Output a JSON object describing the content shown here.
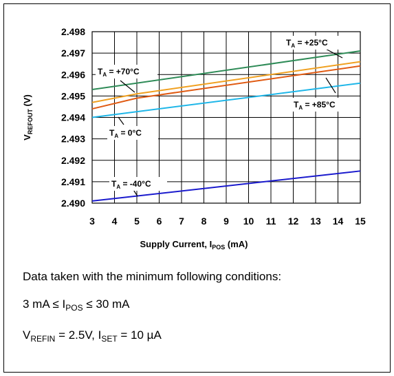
{
  "chart_data": {
    "type": "line",
    "xlabel_main": "Supply Current, I",
    "xlabel_sub": "POS",
    "xlabel_end": " (mA)",
    "ylabel_main": "V",
    "ylabel_sub": "REFOUT",
    "ylabel_end": " (V)",
    "x_ticks": [
      "3",
      "4",
      "5",
      "6",
      "7",
      "8",
      "9",
      "10",
      "11",
      "12",
      "13",
      "14",
      "15"
    ],
    "y_ticks": [
      "2.498",
      "2.497",
      "2.496",
      "2.495",
      "2.494",
      "2.493",
      "2.492",
      "2.491",
      "2.490"
    ],
    "xlim": [
      3,
      15
    ],
    "ylim": [
      2.49,
      2.498
    ],
    "grid": true,
    "series": [
      {
        "name": "T_A = +25°C",
        "color": "#2e8b57",
        "x": [
          3,
          15
        ],
        "y": [
          2.4953,
          2.4971
        ]
      },
      {
        "name": "T_A = +70°C",
        "color": "#f0a020",
        "x": [
          3,
          5,
          15
        ],
        "y": [
          2.4947,
          2.4951,
          2.4966
        ]
      },
      {
        "name": "T_A = +85°C",
        "color": "#e05a12",
        "x": [
          3,
          5,
          15
        ],
        "y": [
          2.4944,
          2.4949,
          2.4964
        ]
      },
      {
        "name": "T_A = 0°C",
        "color": "#1eb6e8",
        "x": [
          3,
          15
        ],
        "y": [
          2.494,
          2.4956
        ]
      },
      {
        "name": "T_A = -40°C",
        "color": "#1a1acd",
        "x": [
          3,
          15
        ],
        "y": [
          2.4901,
          2.4915
        ]
      }
    ],
    "annotations": [
      {
        "text_main": "T",
        "text_sub": "A",
        "text_end": " = +25°C",
        "series": 0
      },
      {
        "text_main": "T",
        "text_sub": "A",
        "text_end": " = +70°C",
        "series": 1
      },
      {
        "text_main": "T",
        "text_sub": "A",
        "text_end": " = +85°C",
        "series": 2
      },
      {
        "text_main": "T",
        "text_sub": "A",
        "text_end": " = 0°C",
        "series": 3
      },
      {
        "text_main": "T",
        "text_sub": "A",
        "text_end": " = -40°C",
        "series": 4
      }
    ]
  },
  "notes": {
    "line1": "Data taken with the minimum following conditions:",
    "line2_a": "3 mA ≤ I",
    "line2_sub": "POS",
    "line2_b": " ≤ 30 mA",
    "line3_a": "V",
    "line3_sub1": "REFIN",
    "line3_b": " = 2.5V, I",
    "line3_sub2": "SET",
    "line3_c": " = 10 µA"
  }
}
